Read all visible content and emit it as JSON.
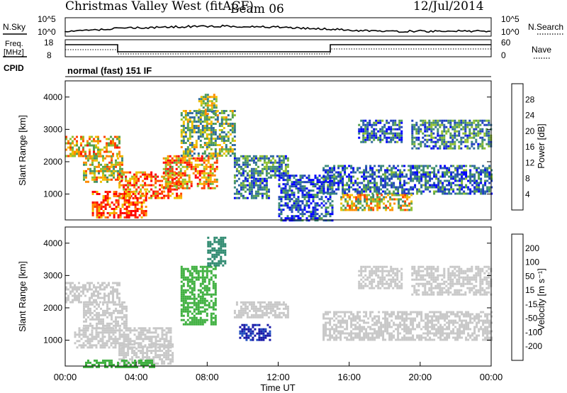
{
  "header": {
    "title": "Christmas Valley West (fitACF)",
    "beam": "Beam 06",
    "date": "12/Jul/2014"
  },
  "panels": {
    "nsky": {
      "label": "N.Sky",
      "left_ticks": [
        "10^5",
        "10^0"
      ],
      "right_ticks": [
        "10^5",
        "10^0"
      ],
      "right_label": "N.Search"
    },
    "freq": {
      "label_line1": "Freq.",
      "label_line2": "[MHz]",
      "left_ticks": [
        "18",
        "8"
      ],
      "right_ticks": [
        "60",
        "0"
      ],
      "right_label": "Nave"
    },
    "cpid": {
      "label": "CPID",
      "value": "normal (fast) 151 IF"
    }
  },
  "colors": {
    "power_scale": [
      "#0000ff",
      "#2040c0",
      "#2f6aa0",
      "#3c8a7a",
      "#55a050",
      "#90c030",
      "#f0c000",
      "#ff8c00",
      "#ff4000",
      "#ff0000"
    ],
    "velocity_scale": [
      "#1a1aa8",
      "#2050c0",
      "#2f8a70",
      "#3fb040",
      "#c8c8c8",
      "#ffb000",
      "#ff8000",
      "#ff5000",
      "#ff0000"
    ],
    "grid_gray": "#c8c8c8"
  },
  "chart_data": [
    {
      "type": "heatmap",
      "name": "power",
      "xlabel": "",
      "ylabel": "Slant Range [km]",
      "xlim": [
        0,
        24
      ],
      "ylim": [
        200,
        4500
      ],
      "y_ticks": [
        "1000",
        "2000",
        "3000",
        "4000"
      ],
      "colorbar": {
        "label": "Power [dB]",
        "ticks": [
          "4",
          "8",
          "12",
          "16",
          "20",
          "24",
          "28"
        ],
        "range": [
          0,
          30
        ]
      },
      "regions": [
        {
          "x": [
            0.0,
            3.0
          ],
          "y": [
            2200,
            2800
          ],
          "v": 20
        },
        {
          "x": [
            1.0,
            3.2
          ],
          "y": [
            1400,
            2200
          ],
          "v": 18
        },
        {
          "x": [
            1.5,
            4.5
          ],
          "y": [
            300,
            1100
          ],
          "v": 26
        },
        {
          "x": [
            3.0,
            6.5
          ],
          "y": [
            900,
            1700
          ],
          "v": 24
        },
        {
          "x": [
            5.5,
            8.5
          ],
          "y": [
            1200,
            2200
          ],
          "v": 22
        },
        {
          "x": [
            6.5,
            9.5
          ],
          "y": [
            2200,
            3600
          ],
          "v": 14
        },
        {
          "x": [
            7.5,
            8.5
          ],
          "y": [
            3500,
            4100
          ],
          "v": 16
        },
        {
          "x": [
            9.5,
            12.5
          ],
          "y": [
            1500,
            2200
          ],
          "v": 10
        },
        {
          "x": [
            9.5,
            11.5
          ],
          "y": [
            900,
            1500
          ],
          "v": 8
        },
        {
          "x": [
            12.0,
            15.0
          ],
          "y": [
            200,
            1600
          ],
          "v": 6
        },
        {
          "x": [
            14.5,
            24.0
          ],
          "y": [
            1000,
            1900
          ],
          "v": 8
        },
        {
          "x": [
            15.5,
            19.5
          ],
          "y": [
            500,
            1000
          ],
          "v": 18
        },
        {
          "x": [
            16.5,
            19.0
          ],
          "y": [
            2600,
            3300
          ],
          "v": 8
        },
        {
          "x": [
            19.5,
            24.0
          ],
          "y": [
            2400,
            3300
          ],
          "v": 10
        }
      ]
    },
    {
      "type": "heatmap",
      "name": "velocity",
      "xlabel": "Time UT",
      "ylabel": "Slant Range [km]",
      "xlim": [
        0,
        24
      ],
      "ylim": [
        200,
        4500
      ],
      "x_ticks": [
        "00:00",
        "04:00",
        "08:00",
        "12:00",
        "16:00",
        "20:00",
        "00:00"
      ],
      "y_ticks": [
        "1000",
        "2000",
        "3000",
        "4000"
      ],
      "colorbar": {
        "label": "Velocity [m s⁻¹]",
        "ticks": [
          "200",
          "100",
          "50",
          "15",
          "-15",
          "-50",
          "-100",
          "-200"
        ],
        "range": [
          -250,
          250
        ]
      },
      "regions": [
        {
          "x": [
            0.0,
            3.0
          ],
          "y": [
            2200,
            2800
          ],
          "v": 0
        },
        {
          "x": [
            1.0,
            3.5
          ],
          "y": [
            1400,
            2200
          ],
          "v": 0
        },
        {
          "x": [
            0.5,
            6.0
          ],
          "y": [
            800,
            1400
          ],
          "v": 0
        },
        {
          "x": [
            3.0,
            6.0
          ],
          "y": [
            300,
            900
          ],
          "v": 0
        },
        {
          "x": [
            6.5,
            8.5
          ],
          "y": [
            1500,
            3300
          ],
          "v": -60
        },
        {
          "x": [
            8.0,
            9.0
          ],
          "y": [
            3300,
            4200
          ],
          "v": -120
        },
        {
          "x": [
            9.8,
            11.5
          ],
          "y": [
            1000,
            1500
          ],
          "v": -200
        },
        {
          "x": [
            9.5,
            12.5
          ],
          "y": [
            1700,
            2200
          ],
          "v": 0
        },
        {
          "x": [
            14.5,
            24.0
          ],
          "y": [
            1000,
            1900
          ],
          "v": 0
        },
        {
          "x": [
            16.5,
            19.0
          ],
          "y": [
            2600,
            3300
          ],
          "v": 0
        },
        {
          "x": [
            19.5,
            24.0
          ],
          "y": [
            2400,
            3300
          ],
          "v": 0
        },
        {
          "x": [
            1.0,
            5.0
          ],
          "y": [
            200,
            400
          ],
          "v": -60
        }
      ]
    }
  ]
}
